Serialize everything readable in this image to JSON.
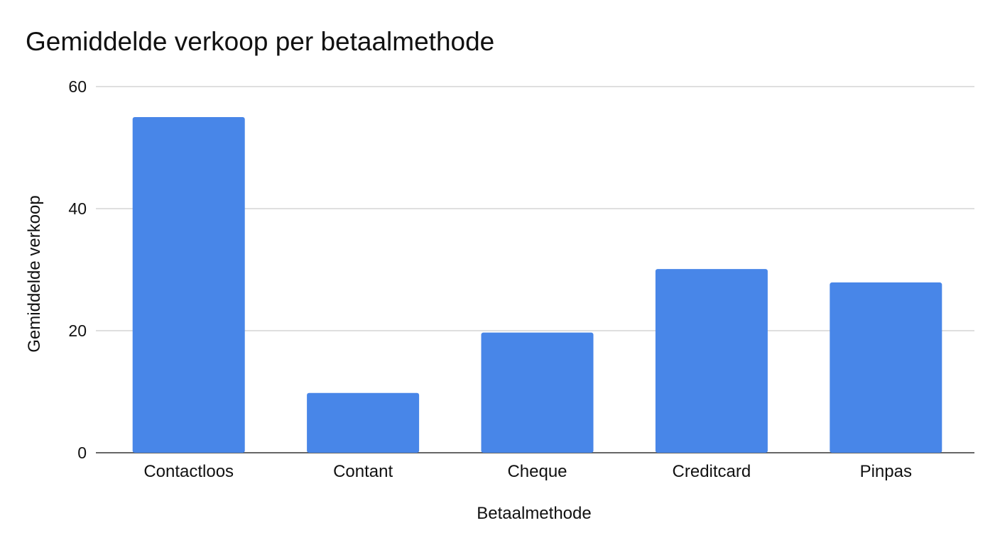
{
  "chart_data": {
    "type": "bar",
    "title": "Gemiddelde verkoop per betaalmethode",
    "xlabel": "Betaalmethode",
    "ylabel": "Gemiddelde verkoop",
    "categories": [
      "Contactloos",
      "Contant",
      "Cheque",
      "Creditcard",
      "Pinpas"
    ],
    "values": [
      55,
      9.8,
      19.7,
      30.1,
      27.9
    ],
    "ylim": [
      0,
      60
    ],
    "yticks": [
      "0",
      "20",
      "40",
      "60"
    ],
    "grid": true,
    "legend": "none",
    "bar_color": "#4886e8"
  }
}
